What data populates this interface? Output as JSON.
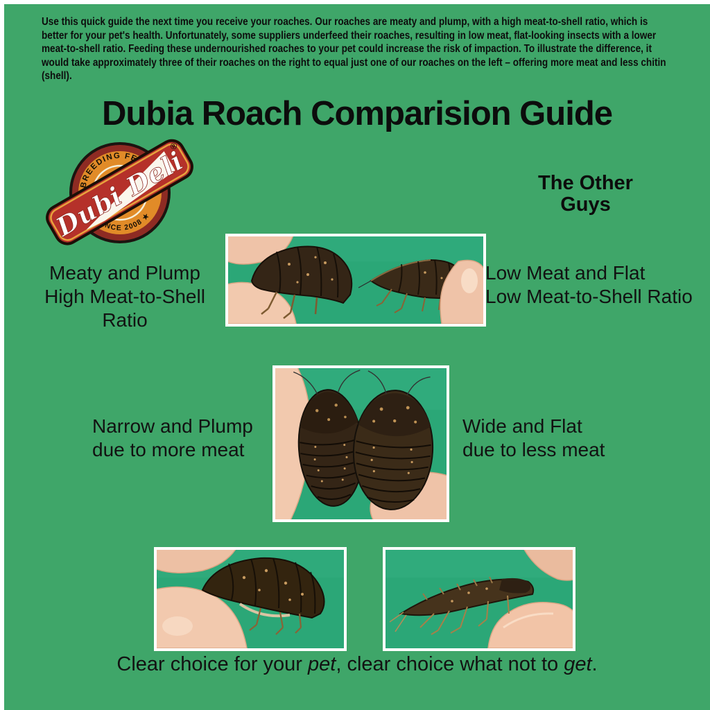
{
  "colors": {
    "canvas_green": "#3FA669",
    "photo_green": "#2BA777",
    "text": "#101010",
    "logo_ring_red": "#8E2B23",
    "logo_inner_orange": "#E18B28",
    "logo_banner_red": "#B5312A",
    "logo_gold_trim": "#E8A33D",
    "logo_cream": "#F6EFD8"
  },
  "intro_paragraph": "Use this quick guide the next time you receive your roaches. Our roaches are meaty and plump, with a high meat-to-shell ratio, which is better for your pet's health. Unfortunately, some suppliers underfeed their roaches, resulting in low meat, flat-looking insects with a lower meat-to-shell ratio. Feeding these undernourished roaches to your pet could increase the risk of impaction. To illustrate the difference, it would take approximately three of their roaches on the right to equal just one of our roaches on the left – offering more meat and less chitin (shell).",
  "title": "Dubia Roach Comparision Guide",
  "logo": {
    "arc_top": "BREEDING FEEDERS",
    "banner_script": "Dubi Deli",
    "registered": "®",
    "arc_bottom": "★  SINCE 2008  ★"
  },
  "right_column_header": {
    "line1": "The Other",
    "line2": "Guys"
  },
  "rows": [
    {
      "left_label_line1": "Meaty and Plump",
      "left_label_line2": "High Meat-to-Shell Ratio",
      "right_label_line1": "Low Meat and Flat",
      "right_label_line2": "Low Meat-to-Shell Ratio",
      "photo_alt": "Side view photo: plump Dubi Deli roach on the left and flat competitor roach on the right, each held between fingertips on a green background"
    },
    {
      "left_label_line1": "Narrow and Plump",
      "left_label_line2": "due to more meat",
      "right_label_line1": "Wide and Flat",
      "right_label_line2": "due to less meat",
      "photo_alt": "Top view photo: narrow plump roach on the left and wide flat roach on the right, held between fingertips on a green background"
    },
    {
      "left_photo_alt": "Side view photo of a plump, meaty roach held between fingertips",
      "right_photo_alt": "Side view photo of a thin, flat roach held between fingertips"
    }
  ],
  "caption": {
    "segments": [
      {
        "text": "Clear choice for your ",
        "italic": false
      },
      {
        "text": "pet",
        "italic": true
      },
      {
        "text": ", clear choice what not to ",
        "italic": false
      },
      {
        "text": "get",
        "italic": true
      },
      {
        "text": ".",
        "italic": false
      }
    ]
  }
}
